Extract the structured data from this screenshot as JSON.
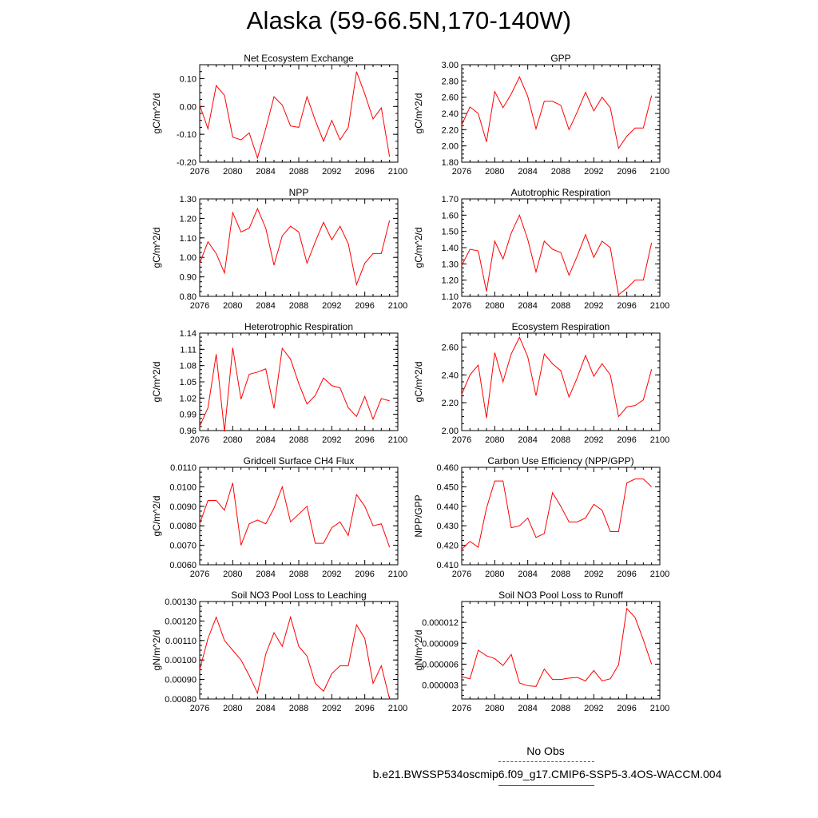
{
  "title": "Alaska (59-66.5N,170-140W)",
  "legend": {
    "obs_label": "No Obs",
    "model_label": "b.e21.BWSSP534oscmip6.f09_g17.CMIP6-SSP5-3.4OS-WACCM.004",
    "obs_color": "#4a4aff",
    "model_color": "#ff0000"
  },
  "chart_data": [
    {
      "type": "line",
      "title": "Net Ecosystem Exchange",
      "ylabel": "gC/m^2/d",
      "xlim": [
        2076,
        2100
      ],
      "ylim": [
        -0.2,
        0.15
      ],
      "xticks": [
        "2076",
        "2080",
        "2084",
        "2088",
        "2092",
        "2096",
        "2100"
      ],
      "yticks": [
        "-0.20",
        "-0.10",
        "0.00",
        "0.10"
      ],
      "series": [
        {
          "color": "#ff0000",
          "x": [
            2076,
            2077,
            2078,
            2079,
            2080,
            2081,
            2082,
            2083,
            2084,
            2085,
            2086,
            2087,
            2088,
            2089,
            2090,
            2091,
            2092,
            2093,
            2094,
            2095,
            2096,
            2097,
            2098,
            2099
          ],
          "values": [
            0.005,
            -0.08,
            0.075,
            0.04,
            -0.11,
            -0.12,
            -0.095,
            -0.185,
            -0.08,
            0.035,
            0.005,
            -0.07,
            -0.075,
            0.035,
            -0.05,
            -0.125,
            -0.05,
            -0.12,
            -0.075,
            0.125,
            0.045,
            -0.045,
            -0.005,
            -0.18
          ]
        }
      ]
    },
    {
      "type": "line",
      "title": "GPP",
      "ylabel": "gC/m^2/d",
      "xlim": [
        2076,
        2100
      ],
      "ylim": [
        1.8,
        3.0
      ],
      "xticks": [
        "2076",
        "2080",
        "2084",
        "2088",
        "2092",
        "2096",
        "2100"
      ],
      "yticks": [
        "1.80",
        "2.00",
        "2.20",
        "2.40",
        "2.60",
        "2.80",
        "3.00"
      ],
      "series": [
        {
          "color": "#ff0000",
          "x": [
            2076,
            2077,
            2078,
            2079,
            2080,
            2081,
            2082,
            2083,
            2084,
            2085,
            2086,
            2087,
            2088,
            2089,
            2090,
            2091,
            2092,
            2093,
            2094,
            2095,
            2096,
            2097,
            2098,
            2099
          ],
          "values": [
            2.26,
            2.48,
            2.4,
            2.05,
            2.67,
            2.47,
            2.64,
            2.85,
            2.61,
            2.21,
            2.55,
            2.55,
            2.5,
            2.2,
            2.42,
            2.66,
            2.43,
            2.6,
            2.47,
            1.97,
            2.12,
            2.22,
            2.22,
            2.62
          ]
        }
      ]
    },
    {
      "type": "line",
      "title": "NPP",
      "ylabel": "gC/m^2/d",
      "xlim": [
        2076,
        2100
      ],
      "ylim": [
        0.8,
        1.3
      ],
      "xticks": [
        "2076",
        "2080",
        "2084",
        "2088",
        "2092",
        "2096",
        "2100"
      ],
      "yticks": [
        "0.80",
        "0.90",
        "1.00",
        "1.10",
        "1.20",
        "1.30"
      ],
      "series": [
        {
          "color": "#ff0000",
          "x": [
            2076,
            2077,
            2078,
            2079,
            2080,
            2081,
            2082,
            2083,
            2084,
            2085,
            2086,
            2087,
            2088,
            2089,
            2090,
            2091,
            2092,
            2093,
            2094,
            2095,
            2096,
            2097,
            2098,
            2099
          ],
          "values": [
            0.97,
            1.08,
            1.02,
            0.92,
            1.23,
            1.13,
            1.15,
            1.25,
            1.15,
            0.96,
            1.11,
            1.16,
            1.13,
            0.97,
            1.08,
            1.18,
            1.09,
            1.16,
            1.07,
            0.86,
            0.97,
            1.02,
            1.02,
            1.19
          ]
        }
      ]
    },
    {
      "type": "line",
      "title": "Autotrophic Respiration",
      "ylabel": "gC/m^2/d",
      "xlim": [
        2076,
        2100
      ],
      "ylim": [
        1.1,
        1.7
      ],
      "xticks": [
        "2076",
        "2080",
        "2084",
        "2088",
        "2092",
        "2096",
        "2100"
      ],
      "yticks": [
        "1.10",
        "1.20",
        "1.30",
        "1.40",
        "1.50",
        "1.60",
        "1.70"
      ],
      "series": [
        {
          "color": "#ff0000",
          "x": [
            2076,
            2077,
            2078,
            2079,
            2080,
            2081,
            2082,
            2083,
            2084,
            2085,
            2086,
            2087,
            2088,
            2089,
            2090,
            2091,
            2092,
            2093,
            2094,
            2095,
            2096,
            2097,
            2098,
            2099
          ],
          "values": [
            1.29,
            1.39,
            1.38,
            1.13,
            1.44,
            1.33,
            1.49,
            1.6,
            1.45,
            1.25,
            1.44,
            1.39,
            1.37,
            1.23,
            1.35,
            1.48,
            1.34,
            1.44,
            1.4,
            1.11,
            1.15,
            1.2,
            1.2,
            1.43
          ]
        }
      ]
    },
    {
      "type": "line",
      "title": "Heterotrophic Respiration",
      "ylabel": "gC/m^2/d",
      "xlim": [
        2076,
        2100
      ],
      "ylim": [
        0.96,
        1.14
      ],
      "xticks": [
        "2076",
        "2080",
        "2084",
        "2088",
        "2092",
        "2096",
        "2100"
      ],
      "yticks": [
        "0.96",
        "0.99",
        "1.02",
        "1.05",
        "1.08",
        "1.11",
        "1.14"
      ],
      "series": [
        {
          "color": "#ff0000",
          "x": [
            2076,
            2077,
            2078,
            2079,
            2080,
            2081,
            2082,
            2083,
            2084,
            2085,
            2086,
            2087,
            2088,
            2089,
            2090,
            2091,
            2092,
            2093,
            2094,
            2095,
            2096,
            2097,
            2098,
            2099
          ],
          "values": [
            0.968,
            1.002,
            1.101,
            0.958,
            1.113,
            1.018,
            1.064,
            1.068,
            1.074,
            1.001,
            1.112,
            1.092,
            1.047,
            1.009,
            1.025,
            1.057,
            1.043,
            1.039,
            1.002,
            0.986,
            1.023,
            0.981,
            1.019,
            1.015
          ]
        }
      ]
    },
    {
      "type": "line",
      "title": "Ecosystem Respiration",
      "ylabel": "gC/m^2/d",
      "xlim": [
        2076,
        2100
      ],
      "ylim": [
        2.0,
        2.7
      ],
      "xticks": [
        "2076",
        "2080",
        "2084",
        "2088",
        "2092",
        "2096",
        "2100"
      ],
      "yticks": [
        "2.00",
        "2.20",
        "2.40",
        "2.60"
      ],
      "series": [
        {
          "color": "#ff0000",
          "x": [
            2076,
            2077,
            2078,
            2079,
            2080,
            2081,
            2082,
            2083,
            2084,
            2085,
            2086,
            2087,
            2088,
            2089,
            2090,
            2091,
            2092,
            2093,
            2094,
            2095,
            2096,
            2097,
            2098,
            2099
          ],
          "values": [
            2.26,
            2.4,
            2.47,
            2.09,
            2.56,
            2.35,
            2.55,
            2.67,
            2.53,
            2.25,
            2.55,
            2.48,
            2.43,
            2.24,
            2.38,
            2.54,
            2.39,
            2.48,
            2.4,
            2.1,
            2.17,
            2.18,
            2.22,
            2.44
          ]
        }
      ]
    },
    {
      "type": "line",
      "title": "Gridcell Surface CH4 Flux",
      "ylabel": "gC/m^2/d",
      "xlim": [
        2076,
        2100
      ],
      "ylim": [
        0.006,
        0.011
      ],
      "xticks": [
        "2076",
        "2080",
        "2084",
        "2088",
        "2092",
        "2096",
        "2100"
      ],
      "yticks": [
        "0.0060",
        "0.0070",
        "0.0080",
        "0.0090",
        "0.0100",
        "0.0110"
      ],
      "series": [
        {
          "color": "#ff0000",
          "x": [
            2076,
            2077,
            2078,
            2079,
            2080,
            2081,
            2082,
            2083,
            2084,
            2085,
            2086,
            2087,
            2088,
            2089,
            2090,
            2091,
            2092,
            2093,
            2094,
            2095,
            2096,
            2097,
            2098,
            2099
          ],
          "values": [
            0.0081,
            0.0093,
            0.0093,
            0.0088,
            0.0102,
            0.007,
            0.0081,
            0.0083,
            0.0081,
            0.0089,
            0.01,
            0.0082,
            0.0086,
            0.009,
            0.0071,
            0.0071,
            0.0079,
            0.0082,
            0.0075,
            0.0096,
            0.009,
            0.008,
            0.0081,
            0.0069
          ]
        }
      ]
    },
    {
      "type": "line",
      "title": "Carbon Use Efficiency (NPP/GPP)",
      "ylabel": "NPP/GPP",
      "xlim": [
        2076,
        2100
      ],
      "ylim": [
        0.41,
        0.46
      ],
      "xticks": [
        "2076",
        "2080",
        "2084",
        "2088",
        "2092",
        "2096",
        "2100"
      ],
      "yticks": [
        "0.410",
        "0.420",
        "0.430",
        "0.440",
        "0.450",
        "0.460"
      ],
      "series": [
        {
          "color": "#ff0000",
          "x": [
            2076,
            2077,
            2078,
            2079,
            2080,
            2081,
            2082,
            2083,
            2084,
            2085,
            2086,
            2087,
            2088,
            2089,
            2090,
            2091,
            2092,
            2093,
            2094,
            2095,
            2096,
            2097,
            2098,
            2099
          ],
          "values": [
            0.418,
            0.422,
            0.419,
            0.439,
            0.453,
            0.453,
            0.429,
            0.43,
            0.434,
            0.424,
            0.426,
            0.447,
            0.44,
            0.432,
            0.432,
            0.434,
            0.441,
            0.438,
            0.427,
            0.427,
            0.452,
            0.454,
            0.454,
            0.45
          ]
        }
      ]
    },
    {
      "type": "line",
      "title": "Soil NO3 Pool Loss to Leaching",
      "ylabel": "gN/m^2/d",
      "xlim": [
        2076,
        2100
      ],
      "ylim": [
        0.0008,
        0.0013
      ],
      "xticks": [
        "2076",
        "2080",
        "2084",
        "2088",
        "2092",
        "2096",
        "2100"
      ],
      "yticks": [
        "0.00080",
        "0.00090",
        "0.00100",
        "0.00110",
        "0.00120",
        "0.00130"
      ],
      "series": [
        {
          "color": "#ff0000",
          "x": [
            2076,
            2077,
            2078,
            2079,
            2080,
            2081,
            2082,
            2083,
            2084,
            2085,
            2086,
            2087,
            2088,
            2089,
            2090,
            2091,
            2092,
            2093,
            2094,
            2095,
            2096,
            2097,
            2098,
            2099
          ],
          "values": [
            0.00095,
            0.00111,
            0.00122,
            0.0011,
            0.00105,
            0.001,
            0.00092,
            0.00083,
            0.00103,
            0.00114,
            0.00107,
            0.00122,
            0.00107,
            0.00102,
            0.00088,
            0.00084,
            0.00093,
            0.00097,
            0.00097,
            0.00118,
            0.00111,
            0.00088,
            0.00097,
            0.0008
          ]
        }
      ]
    },
    {
      "type": "line",
      "title": "Soil NO3 Pool Loss to Runoff",
      "ylabel": "gN/m^2/d",
      "xlim": [
        2076,
        2100
      ],
      "ylim": [
        1e-06,
        1.5e-05
      ],
      "xticks": [
        "2076",
        "2080",
        "2084",
        "2088",
        "2092",
        "2096",
        "2100"
      ],
      "yticks": [
        "0.000003",
        "0.000006",
        "0.000009",
        "0.000012"
      ],
      "ytickvalues": [
        3e-06,
        6e-06,
        9e-06,
        1.2e-05
      ],
      "series": [
        {
          "color": "#ff0000",
          "x": [
            2076,
            2077,
            2078,
            2079,
            2080,
            2081,
            2082,
            2083,
            2084,
            2085,
            2086,
            2087,
            2088,
            2089,
            2090,
            2091,
            2092,
            2093,
            2094,
            2095,
            2096,
            2097,
            2098,
            2099
          ],
          "values": [
            4.2e-06,
            3.9e-06,
            8e-06,
            7.2e-06,
            6.8e-06,
            5.8e-06,
            7.4e-06,
            3.3e-06,
            2.9e-06,
            2.8e-06,
            5.3e-06,
            3.8e-06,
            3.8e-06,
            4e-06,
            4.1e-06,
            3.6e-06,
            5.1e-06,
            3.6e-06,
            3.9e-06,
            5.9e-06,
            1.4e-05,
            1.27e-05,
            9.5e-06,
            6e-06
          ]
        }
      ]
    }
  ]
}
